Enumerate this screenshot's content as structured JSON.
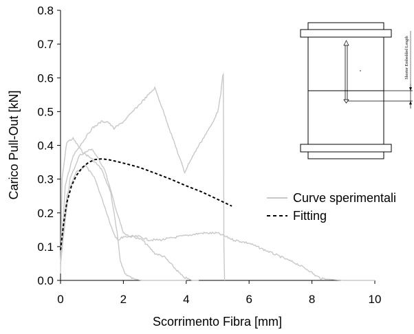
{
  "chart_data": {
    "type": "line",
    "xlabel": "Scorrimento Fibra [mm]",
    "ylabel": "Carico Pull-Out  [kN]",
    "xlim": [
      0,
      10
    ],
    "ylim": [
      0,
      0.8
    ],
    "x_ticks": [
      "0",
      "2",
      "4",
      "6",
      "8",
      "10"
    ],
    "y_ticks": [
      "0.0",
      "0.1",
      "0.2",
      "0.3",
      "0.4",
      "0.5",
      "0.6",
      "0.7",
      "0.8"
    ],
    "grid": false,
    "legend": {
      "placement": "right",
      "entries": [
        "Curve sperimentali",
        "Fitting"
      ]
    },
    "colors": {
      "experimental": "#c8c8c8",
      "fitting": "#000000"
    },
    "series": [
      {
        "name": "Curve sperimentali",
        "style": "solid",
        "x": [
          0.0,
          0.05,
          0.2,
          0.4,
          0.7,
          1.0,
          1.3,
          1.6,
          1.8,
          1.9,
          2.05,
          2.3,
          2.6,
          3.0,
          4.0
        ],
        "y": [
          0.02,
          0.3,
          0.41,
          0.42,
          0.38,
          0.36,
          0.33,
          0.26,
          0.14,
          0.06,
          0.02,
          0.005,
          0.0,
          0.0,
          0.0
        ]
      },
      {
        "name": "Curve sperimentali",
        "style": "solid",
        "x": [
          0.0,
          0.2,
          0.5,
          0.8,
          1.1,
          1.4,
          1.65,
          1.75,
          1.85,
          2.0,
          2.3,
          2.6,
          2.8,
          3.0,
          3.3,
          3.6,
          3.9,
          4.2,
          4.4
        ],
        "y": [
          0.05,
          0.25,
          0.32,
          0.34,
          0.3,
          0.22,
          0.15,
          0.13,
          0.12,
          0.13,
          0.13,
          0.12,
          0.1,
          0.08,
          0.07,
          0.04,
          0.01,
          0.0,
          0.0
        ]
      },
      {
        "name": "Curve sperimentali",
        "style": "solid",
        "x": [
          0.0,
          0.3,
          0.6,
          1.0,
          1.4,
          1.8,
          2.0,
          2.2,
          2.5,
          2.8,
          3.2,
          3.8,
          4.5,
          5.0,
          5.5,
          6.0,
          6.5,
          7.0,
          7.5,
          7.9,
          8.1,
          8.3,
          9.0,
          10.0
        ],
        "y": [
          0.05,
          0.3,
          0.37,
          0.39,
          0.33,
          0.2,
          0.14,
          0.13,
          0.13,
          0.12,
          0.12,
          0.13,
          0.14,
          0.14,
          0.12,
          0.11,
          0.09,
          0.07,
          0.05,
          0.03,
          0.015,
          0.005,
          0.0,
          0.0
        ]
      },
      {
        "name": "Curve sperimentali",
        "style": "solid",
        "x": [
          0.0,
          0.15,
          0.4,
          0.7,
          1.0,
          1.3,
          1.5,
          1.7,
          2.0,
          2.4,
          2.8,
          3.0,
          3.2,
          3.5,
          3.8,
          3.95,
          4.1,
          4.4,
          4.8,
          5.0,
          5.1,
          5.15,
          5.18,
          5.2,
          5.22
        ],
        "y": [
          0.05,
          0.28,
          0.37,
          0.41,
          0.45,
          0.47,
          0.47,
          0.45,
          0.47,
          0.51,
          0.55,
          0.57,
          0.52,
          0.44,
          0.36,
          0.32,
          0.35,
          0.4,
          0.46,
          0.5,
          0.55,
          0.6,
          0.61,
          0.1,
          0.0
        ]
      },
      {
        "name": "Fitting",
        "style": "dashed",
        "x": [
          0.0,
          0.1,
          0.2,
          0.35,
          0.5,
          0.7,
          0.9,
          1.1,
          1.3,
          1.5,
          1.8,
          2.1,
          2.5,
          3.0,
          3.5,
          4.0,
          4.5,
          5.0,
          5.45
        ],
        "y": [
          0.09,
          0.17,
          0.23,
          0.28,
          0.31,
          0.335,
          0.35,
          0.358,
          0.36,
          0.358,
          0.352,
          0.345,
          0.335,
          0.318,
          0.3,
          0.28,
          0.262,
          0.24,
          0.22
        ]
      }
    ]
  },
  "inset": {
    "side_label": "Shorter Embedded Length"
  }
}
